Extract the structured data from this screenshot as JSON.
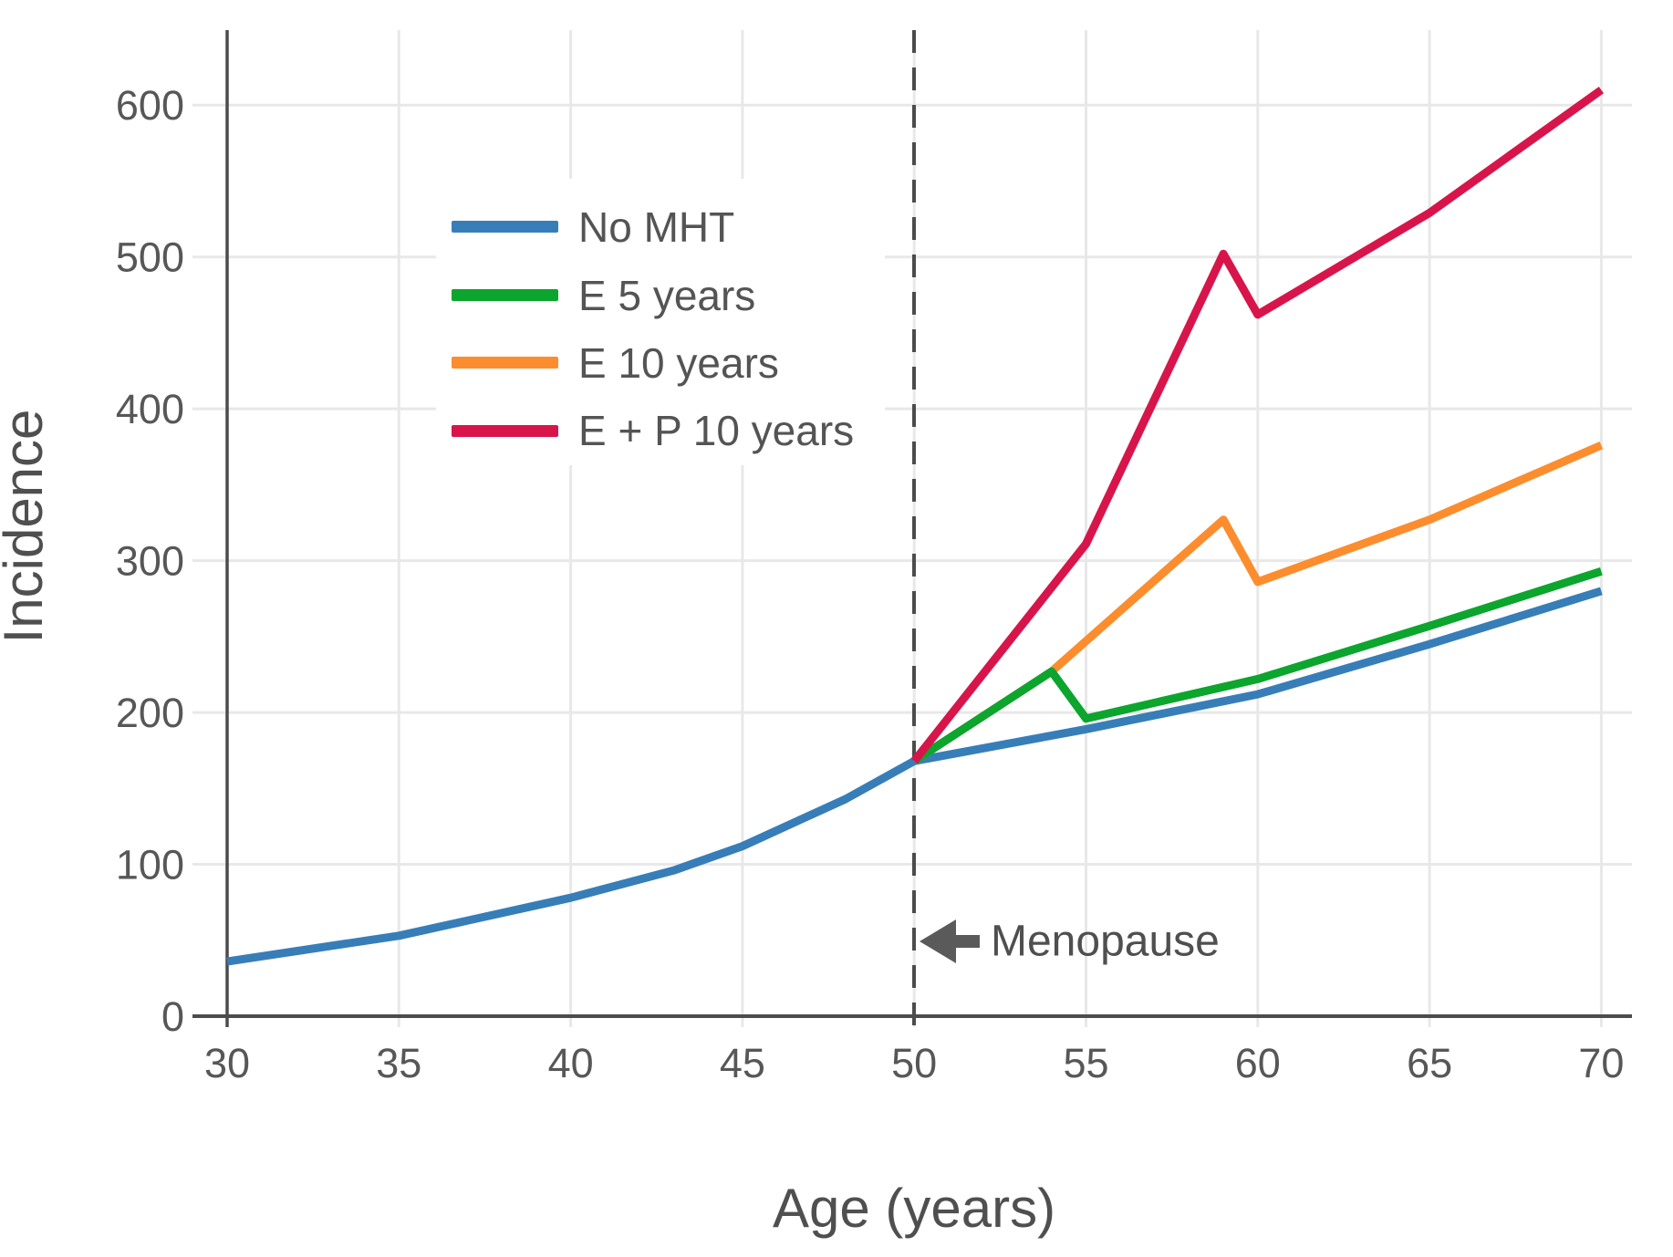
{
  "chart_data": {
    "type": "line",
    "title": "",
    "xlabel": "Age (years)",
    "ylabel": "Incidence",
    "xlim": [
      30,
      70
    ],
    "ylim": [
      0,
      648
    ],
    "x_ticks": [
      30,
      35,
      40,
      45,
      50,
      55,
      60,
      65,
      70
    ],
    "y_ticks": [
      0,
      100,
      200,
      300,
      400,
      500,
      600
    ],
    "grid": true,
    "legend_position": "upper left inside plot",
    "menopause_line": {
      "x": 50,
      "style": "dashed"
    },
    "annotation": {
      "text": "Menopause",
      "arrow_direction": "left",
      "arrow_tip_x": 50.2,
      "arrow_tip_y": 49
    },
    "series": [
      {
        "name": "No MHT",
        "color": "#377eb8",
        "points": [
          [
            30,
            36
          ],
          [
            35,
            53
          ],
          [
            40,
            78
          ],
          [
            43,
            96
          ],
          [
            45,
            112
          ],
          [
            48,
            143
          ],
          [
            50,
            168
          ],
          [
            55,
            189
          ],
          [
            60,
            212
          ],
          [
            65,
            245
          ],
          [
            70,
            280
          ]
        ]
      },
      {
        "name": "E 5 years",
        "color": "#0ca52d",
        "points": [
          [
            50,
            168
          ],
          [
            54,
            227
          ],
          [
            55,
            196
          ],
          [
            60,
            222
          ],
          [
            65,
            257
          ],
          [
            70,
            293
          ]
        ]
      },
      {
        "name": "E 10 years",
        "color": "#fc8d2e",
        "points": [
          [
            50,
            168
          ],
          [
            54,
            227
          ],
          [
            59,
            327
          ],
          [
            60,
            286
          ],
          [
            65,
            327
          ],
          [
            70,
            376
          ]
        ]
      },
      {
        "name": "E + P 10 years",
        "color": "#d8154a",
        "points": [
          [
            50,
            168
          ],
          [
            55,
            311
          ],
          [
            59,
            502
          ],
          [
            60,
            462
          ],
          [
            65,
            529
          ],
          [
            70,
            610
          ]
        ]
      }
    ]
  }
}
